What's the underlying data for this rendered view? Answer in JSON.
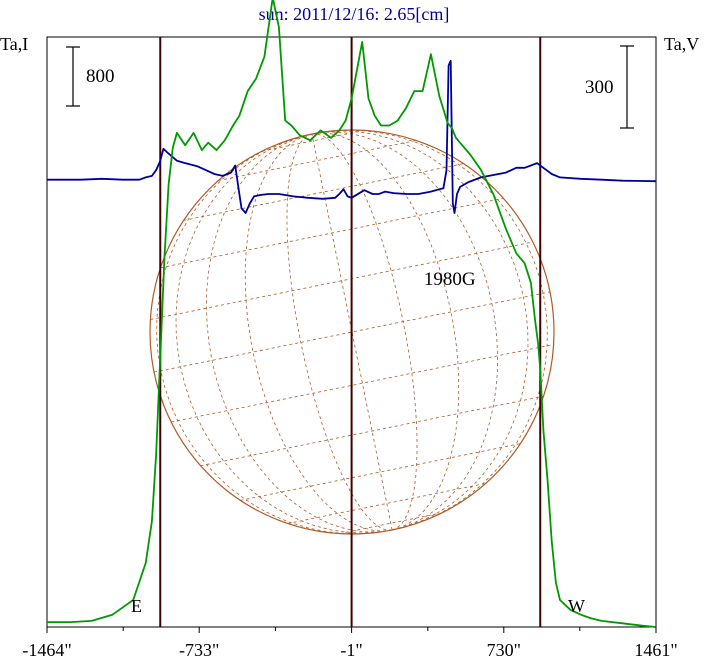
{
  "chart_data": {
    "type": "line",
    "title": "sun: 2011/12/16: 2.65[cm]",
    "left_axis_label": "Ta,I",
    "right_axis_label": "Ta,V",
    "x_ticks": [
      "-1464\"",
      "-733\"",
      "-1\"",
      "730\"",
      "1461\""
    ],
    "xlim": [
      -1464,
      1461
    ],
    "limb_labels": {
      "east": "E",
      "west": "W"
    },
    "scale_bars": [
      {
        "axis": "left",
        "label": "800",
        "value": 800
      },
      {
        "axis": "right",
        "label": "300",
        "value": 300
      }
    ],
    "annotations": [
      {
        "text": "1980G",
        "x": 470
      }
    ],
    "vertical_markers_x": [
      -920,
      -1,
      905
    ],
    "series": [
      {
        "name": "Ta,I",
        "color": "#009900",
        "axis": "left",
        "ylim": [
          0,
          2400
        ],
        "x": [
          -1464,
          -1350,
          -1250,
          -1150,
          -1050,
          -990,
          -960,
          -940,
          -920,
          -900,
          -880,
          -860,
          -840,
          -800,
          -760,
          -720,
          -690,
          -650,
          -610,
          -570,
          -540,
          -500,
          -460,
          -420,
          -380,
          -350,
          -320,
          -290,
          -250,
          -200,
          -150,
          -100,
          -60,
          -30,
          -1,
          50,
          80,
          110,
          140,
          180,
          220,
          260,
          300,
          340,
          380,
          420,
          460,
          480,
          500,
          530,
          570,
          620,
          680,
          740,
          790,
          830,
          860,
          880,
          895,
          905,
          920,
          940,
          960,
          980,
          1000,
          1050,
          1100,
          1150,
          1200,
          1300,
          1400,
          1461
        ],
        "y": [
          20,
          20,
          25,
          50,
          110,
          260,
          430,
          700,
          1100,
          1500,
          1800,
          1950,
          2010,
          1960,
          2010,
          1940,
          1970,
          1940,
          1980,
          2040,
          2080,
          2180,
          2230,
          2320,
          2560,
          2440,
          2060,
          2040,
          2000,
          1980,
          2020,
          1990,
          2020,
          2060,
          2150,
          2380,
          2150,
          2080,
          2040,
          2040,
          2060,
          2110,
          2180,
          2180,
          2330,
          2160,
          2050,
          2030,
          1990,
          1960,
          1920,
          1860,
          1760,
          1620,
          1520,
          1480,
          1400,
          1250,
          1150,
          1050,
          800,
          600,
          350,
          180,
          110,
          70,
          50,
          35,
          25,
          15,
          5,
          0
        ]
      },
      {
        "name": "Ta,V",
        "color": "#000099",
        "axis": "right",
        "ylim": [
          -940,
          300
        ],
        "x": [
          -1464,
          -1300,
          -1200,
          -1100,
          -1020,
          -990,
          -960,
          -940,
          -920,
          -905,
          -880,
          -840,
          -800,
          -740,
          -700,
          -660,
          -620,
          -580,
          -560,
          -545,
          -530,
          -510,
          -490,
          -470,
          -440,
          -400,
          -350,
          -280,
          -210,
          -140,
          -80,
          -60,
          -40,
          -20,
          -1,
          60,
          100,
          130,
          160,
          200,
          260,
          320,
          380,
          420,
          440,
          455,
          465,
          475,
          485,
          493,
          505,
          520,
          560,
          620,
          680,
          740,
          790,
          830,
          860,
          890,
          905,
          930,
          960,
          1000,
          1100,
          1200,
          1300,
          1461
        ],
        "y": [
          0,
          0,
          2,
          0,
          0,
          5,
          8,
          20,
          40,
          65,
          55,
          40,
          35,
          28,
          20,
          12,
          8,
          15,
          30,
          -15,
          -60,
          -70,
          -50,
          -35,
          -32,
          -30,
          -30,
          -35,
          -38,
          -40,
          -38,
          -30,
          -20,
          -35,
          -38,
          -22,
          -30,
          -30,
          -25,
          -28,
          -30,
          -30,
          -25,
          -20,
          -18,
          20,
          240,
          250,
          -50,
          -70,
          -30,
          -15,
          -5,
          5,
          10,
          15,
          25,
          25,
          30,
          35,
          30,
          22,
          12,
          5,
          2,
          0,
          -2,
          -3
        ]
      }
    ],
    "sun_disk": {
      "line_color": "#b05a28",
      "grid": "heliographic dashed meridians and parallels"
    },
    "grid": false
  }
}
